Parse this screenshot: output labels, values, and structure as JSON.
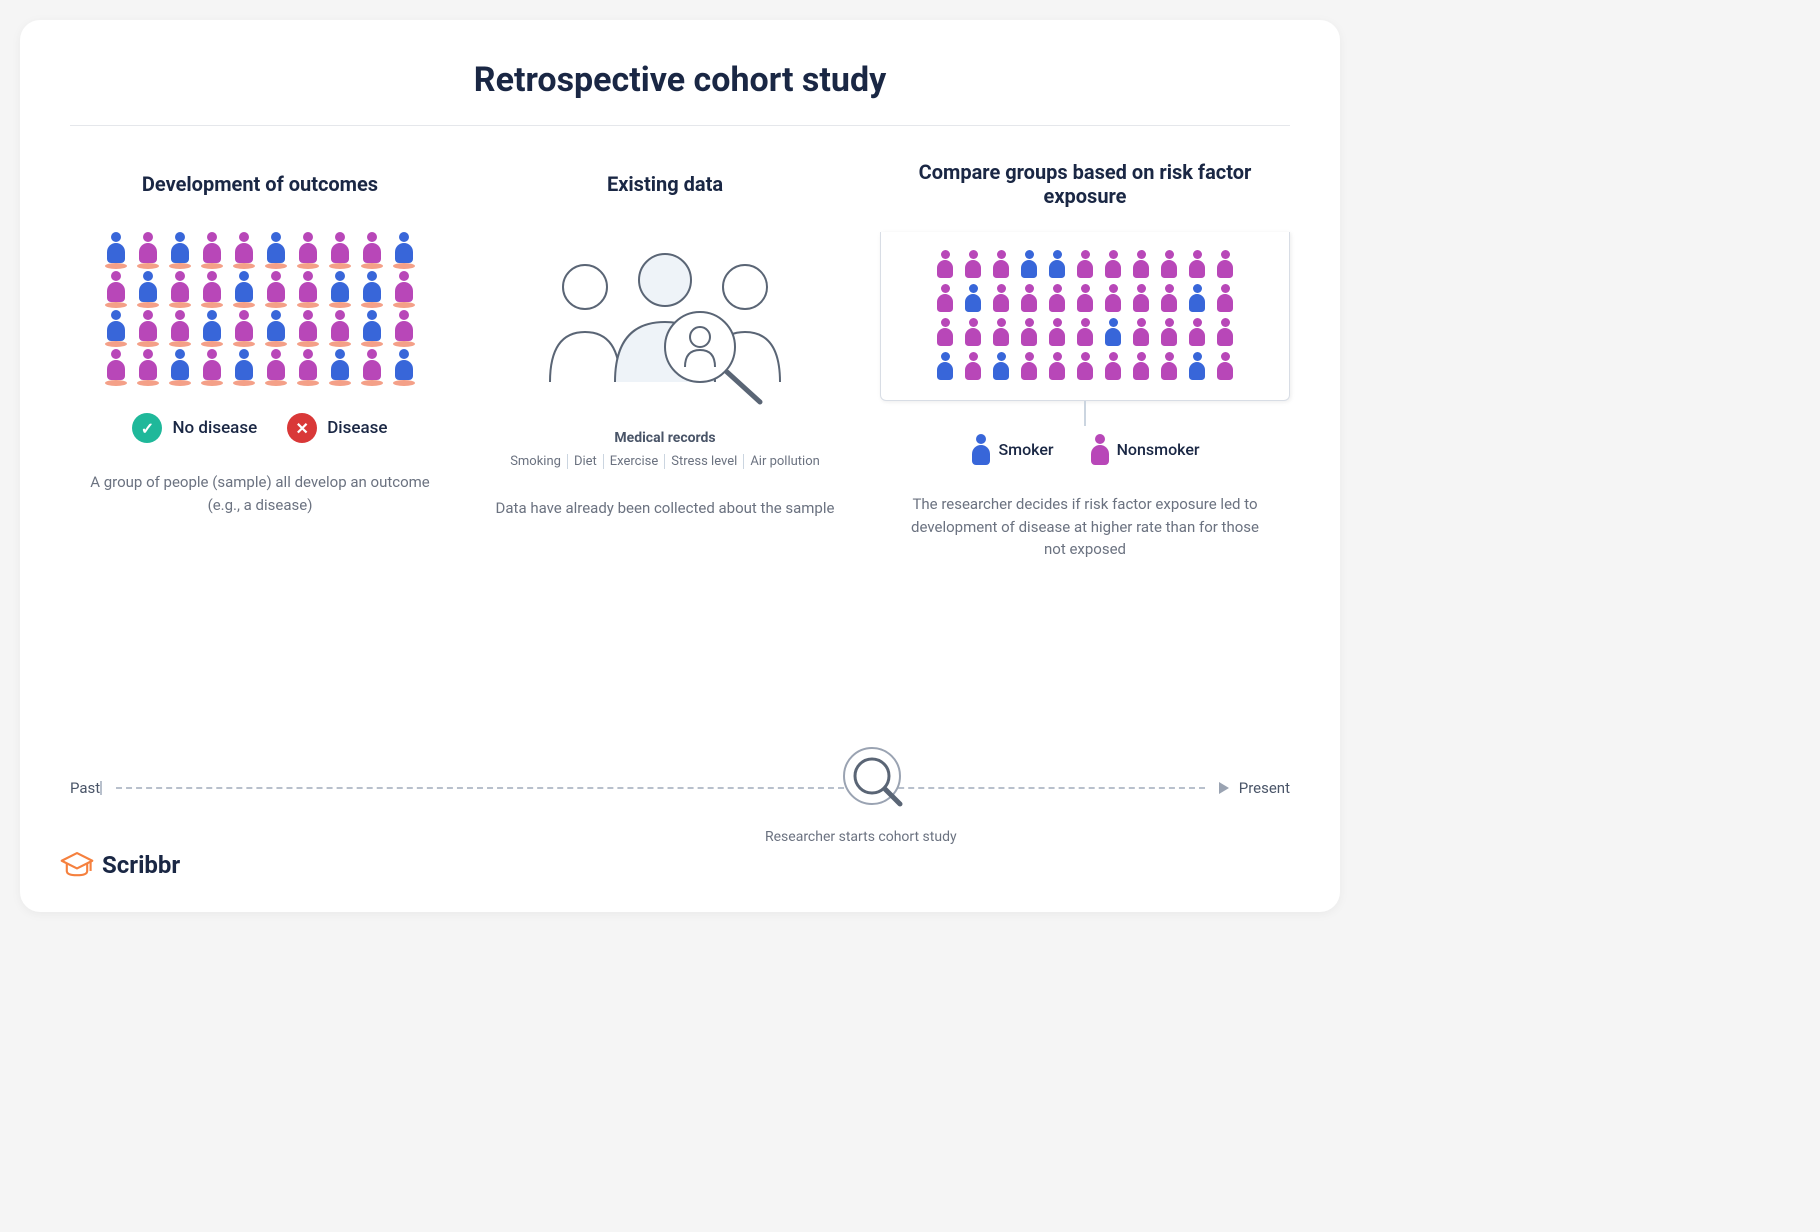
{
  "title": "Retrospective cohort study",
  "colors": {
    "heading": "#1a2744",
    "muted": "#6b7280",
    "blue": "#3866d9",
    "pink": "#b847b8",
    "shadow": "#f08060",
    "ok": "#1fb89a",
    "no": "#d93838",
    "line": "#b8c0cc",
    "panel_border": "#d8dde5",
    "logo": "#f5803e"
  },
  "columns": {
    "left": {
      "title": "Development of outcomes",
      "grid": {
        "rows": 4,
        "cols": 10,
        "underline": true,
        "pattern": [
          [
            "b",
            "p",
            "b",
            "p",
            "p",
            "b",
            "p",
            "p",
            "p",
            "b"
          ],
          [
            "p",
            "b",
            "p",
            "p",
            "b",
            "p",
            "p",
            "b",
            "b",
            "p"
          ],
          [
            "b",
            "p",
            "p",
            "b",
            "p",
            "b",
            "p",
            "p",
            "b",
            "p"
          ],
          [
            "p",
            "p",
            "b",
            "p",
            "b",
            "p",
            "p",
            "b",
            "p",
            "b"
          ]
        ]
      },
      "legend": [
        {
          "type": "ok",
          "label": "No disease"
        },
        {
          "type": "no",
          "label": "Disease"
        }
      ],
      "desc": "A group of people (sample) all develop an outcome (e.g., a disease)"
    },
    "middle": {
      "title": "Existing data",
      "records_title": "Medical records",
      "records": [
        "Smoking",
        "Diet",
        "Exercise",
        "Stress level",
        "Air pollution"
      ],
      "desc": "Data have already been collected about the sample"
    },
    "right": {
      "title": "Compare groups based on risk factor exposure",
      "grid": {
        "rows": 4,
        "cols": 11,
        "underline": false,
        "pattern": [
          [
            "p",
            "p",
            "p",
            "b",
            "b",
            "p",
            "p",
            "p",
            "p",
            "p",
            "p"
          ],
          [
            "p",
            "b",
            "p",
            "p",
            "p",
            "p",
            "p",
            "p",
            "p",
            "b",
            "p"
          ],
          [
            "p",
            "p",
            "p",
            "p",
            "p",
            "p",
            "b",
            "p",
            "p",
            "p",
            "p"
          ],
          [
            "b",
            "p",
            "b",
            "p",
            "p",
            "p",
            "p",
            "p",
            "p",
            "b",
            "p"
          ]
        ]
      },
      "legend": [
        {
          "color": "b",
          "label": "Smoker"
        },
        {
          "color": "p",
          "label": "Nonsmoker"
        }
      ],
      "desc": "The researcher decides if risk factor exposure led to development of disease at higher rate than for those not exposed"
    }
  },
  "timeline": {
    "left": "Past",
    "right": "Present",
    "caption": "Researcher starts cohort study"
  },
  "logo_text": "Scribbr"
}
